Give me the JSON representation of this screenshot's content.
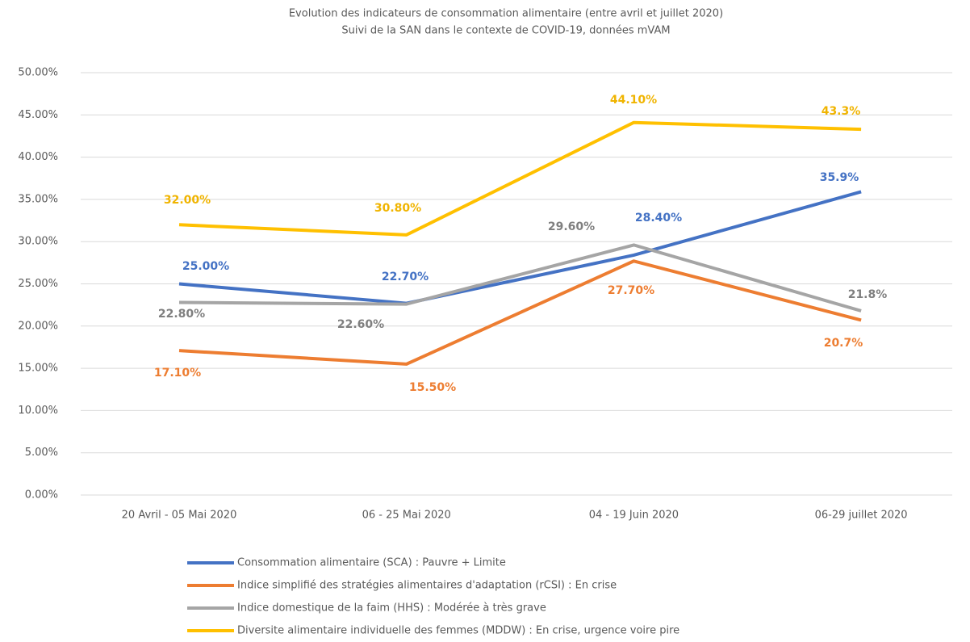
{
  "chart_data": {
    "type": "line",
    "title": "Evolution des indicateurs de consommation alimentaire (entre avril et juillet 2020)",
    "subtitle": "Suivi de la SAN dans le contexte de COVID-19, données mVAM",
    "categories": [
      "20 Avril - 05 Mai 2020",
      "06 - 25 Mai 2020",
      "04 - 19 Juin 2020",
      "06-29 juillet 2020"
    ],
    "series": [
      {
        "name": "Consommation alimentaire (SCA) : Pauvre + Limite",
        "color": "#4472c4",
        "values": [
          25.0,
          22.7,
          28.4,
          35.9
        ],
        "value_labels": [
          "25.00%",
          "22.70%",
          "28.40%",
          "35.9%"
        ]
      },
      {
        "name": "Indice simplifié des stratégies alimentaires d'adaptation (rCSI) : En crise",
        "color": "#ed7d31",
        "values": [
          17.1,
          15.5,
          27.7,
          20.7
        ],
        "value_labels": [
          "17.10%",
          "15.50%",
          "27.70%",
          "20.7%"
        ]
      },
      {
        "name": "Indice domestique de la faim (HHS) : Modérée à très grave",
        "color": "#a5a5a5",
        "values": [
          22.8,
          22.6,
          29.6,
          21.8
        ],
        "value_labels": [
          "22.80%",
          "22.60%",
          "29.60%",
          "21.8%"
        ]
      },
      {
        "name": "Diversite alimentaire individuelle des femmes (MDDW) : En crise, urgence voire pire",
        "color": "#ffc000",
        "values": [
          32.0,
          30.8,
          44.1,
          43.3
        ],
        "value_labels": [
          "32.00%",
          "30.80%",
          "44.10%",
          "43.3%"
        ]
      }
    ],
    "ylim": [
      0,
      50
    ],
    "yticks": [
      {
        "value": 0,
        "label": "0.00%"
      },
      {
        "value": 5,
        "label": "5.00%"
      },
      {
        "value": 10,
        "label": "10.00%"
      },
      {
        "value": 15,
        "label": "15.00%"
      },
      {
        "value": 20,
        "label": "20.00%"
      },
      {
        "value": 25,
        "label": "25.00%"
      },
      {
        "value": 30,
        "label": "30.00%"
      },
      {
        "value": 35,
        "label": "35.00%"
      },
      {
        "value": 40,
        "label": "40.00%"
      },
      {
        "value": 45,
        "label": "45.00%"
      },
      {
        "value": 50,
        "label": "50.00%"
      }
    ],
    "grid": true
  }
}
